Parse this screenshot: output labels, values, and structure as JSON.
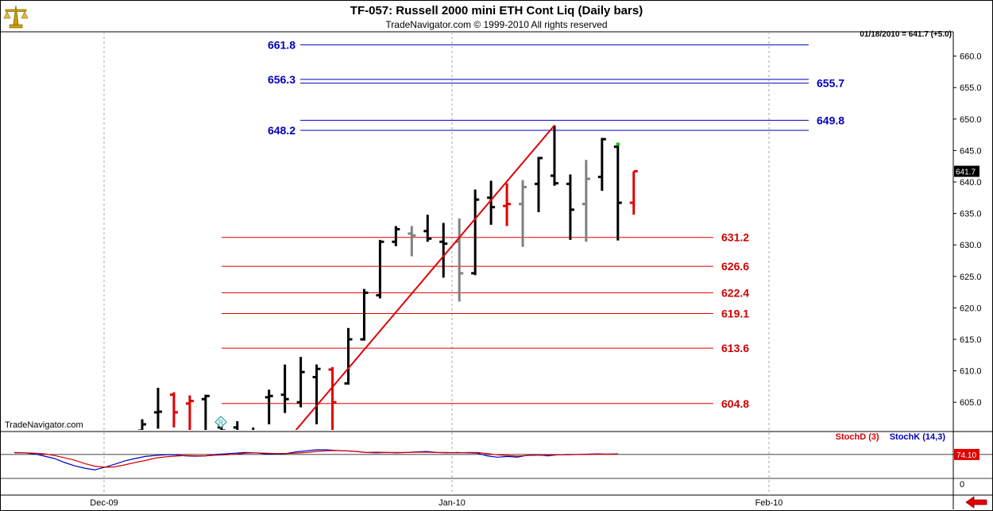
{
  "header": {
    "title": "TF-057:  Russell 2000 mini ETH Cont Liq  (Daily bars)",
    "subtitle": "TradeNavigator.com © 1999-2010 All rights reserved"
  },
  "watermark": "TradeNavigator.com",
  "readout": "01/18/2010 = 641.7 (+5.0)",
  "last_price_tag": "641.7",
  "stoch_value_tag": "74.10",
  "stoch_zero_label": "0",
  "stoch_legend": {
    "d": "StochD (3)",
    "k": "StochK (14,3)"
  },
  "icons": {
    "logo": "scale-logo-icon",
    "nav": "red-left-arrow-icon",
    "marker": "diamond-r-marker-icon"
  },
  "colors": {
    "up_bar": "#000000",
    "down_bar": "#e00000",
    "inside_bar": "#808080",
    "resistance": "#0000c0",
    "support": "#e00000",
    "trendline": "#e00000",
    "stoch_d": "#d40000",
    "stoch_k": "#0000c0"
  },
  "chart_data": {
    "type": "bar",
    "title": "TF-057:  Russell 2000 mini ETH Cont Liq  (Daily bars)",
    "y_range": [
      601,
      663
    ],
    "y_ticks": [
      605.0,
      610.0,
      615.0,
      620.0,
      625.0,
      630.0,
      635.0,
      640.0,
      645.0,
      650.0,
      655.0,
      660.0
    ],
    "x_labels": [
      "Dec-09",
      "Jan-10",
      "Feb-10"
    ],
    "bars": [
      {
        "open": 600.5,
        "high": 602.3,
        "low": 598.0,
        "close": 601.5,
        "color": "up"
      },
      {
        "open": 603.4,
        "high": 607.3,
        "low": 600.8,
        "close": 603.5,
        "color": "up"
      },
      {
        "open": 606.2,
        "high": 606.6,
        "low": 601.0,
        "close": 603.4,
        "color": "down"
      },
      {
        "open": 604.8,
        "high": 606.1,
        "low": 599.5,
        "close": 605.2,
        "color": "down"
      },
      {
        "open": 605.5,
        "high": 606.2,
        "low": 600.0,
        "close": 606.0,
        "color": "up"
      },
      {
        "open": 601.0,
        "high": 602.2,
        "low": 599.0,
        "close": 600.5,
        "color": "up"
      },
      {
        "open": 601.0,
        "high": 602.0,
        "low": 598.0,
        "close": 600.3,
        "color": "up"
      },
      {
        "open": 599.8,
        "high": 601.0,
        "low": 598.0,
        "close": 599.5,
        "color": "up"
      },
      {
        "open": 605.8,
        "high": 607.0,
        "low": 601.5,
        "close": 606.0,
        "color": "up"
      },
      {
        "open": 606.2,
        "high": 611.0,
        "low": 603.3,
        "close": 605.5,
        "color": "up"
      },
      {
        "open": 605.0,
        "high": 612.2,
        "low": 604.2,
        "close": 609.8,
        "color": "up"
      },
      {
        "open": 609.0,
        "high": 611.0,
        "low": 601.5,
        "close": 610.3,
        "color": "up"
      },
      {
        "open": 610.2,
        "high": 610.6,
        "low": 600.0,
        "close": 605.0,
        "color": "down"
      },
      {
        "open": 608.0,
        "high": 616.8,
        "low": 607.8,
        "close": 615.0,
        "color": "up"
      },
      {
        "open": 615.0,
        "high": 623.0,
        "low": 614.8,
        "close": 622.4,
        "color": "up"
      },
      {
        "open": 622.0,
        "high": 630.8,
        "low": 621.5,
        "close": 630.5,
        "color": "up"
      },
      {
        "open": 630.5,
        "high": 633.0,
        "low": 629.8,
        "close": 632.5,
        "color": "up"
      },
      {
        "open": 631.8,
        "high": 633.0,
        "low": 628.2,
        "close": 631.5,
        "color": "inside"
      },
      {
        "open": 632.2,
        "high": 634.8,
        "low": 630.5,
        "close": 631.0,
        "color": "up"
      },
      {
        "open": 630.5,
        "high": 633.5,
        "low": 624.8,
        "close": 630.2,
        "color": "up"
      },
      {
        "open": 630.5,
        "high": 634.2,
        "low": 621.0,
        "close": 625.5,
        "color": "inside"
      },
      {
        "open": 625.5,
        "high": 638.8,
        "low": 625.2,
        "close": 637.2,
        "color": "up"
      },
      {
        "open": 637.5,
        "high": 640.2,
        "low": 633.2,
        "close": 636.0,
        "color": "up"
      },
      {
        "open": 636.2,
        "high": 639.8,
        "low": 633.0,
        "close": 636.5,
        "color": "down"
      },
      {
        "open": 636.5,
        "high": 640.3,
        "low": 629.7,
        "close": 639.2,
        "color": "inside"
      },
      {
        "open": 639.7,
        "high": 644.0,
        "low": 635.2,
        "close": 643.8,
        "color": "up"
      },
      {
        "open": 641.0,
        "high": 649.0,
        "low": 639.4,
        "close": 639.8,
        "color": "up"
      },
      {
        "open": 639.7,
        "high": 641.2,
        "low": 630.8,
        "close": 635.6,
        "color": "up"
      },
      {
        "open": 636.5,
        "high": 643.5,
        "low": 630.5,
        "close": 640.5,
        "color": "inside"
      },
      {
        "open": 640.8,
        "high": 647.0,
        "low": 638.6,
        "close": 646.8,
        "color": "up"
      },
      {
        "open": 645.6,
        "high": 646.0,
        "low": 630.7,
        "close": 636.7,
        "color": "up"
      },
      {
        "open": 636.7,
        "high": 641.7,
        "low": 634.8,
        "close": 641.7,
        "color": "down"
      }
    ],
    "resistance_levels": [
      {
        "left_label": "661.8",
        "value": 661.8
      },
      {
        "left_label": "656.3",
        "value": 656.3
      },
      {
        "right_label": "655.7",
        "value": 655.7
      },
      {
        "right_label": "649.8",
        "value": 649.8
      },
      {
        "left_label": "648.2",
        "value": 648.2
      }
    ],
    "support_levels": [
      {
        "label": "631.2",
        "value": 631.2
      },
      {
        "label": "626.6",
        "value": 626.6
      },
      {
        "label": "622.4",
        "value": 622.4
      },
      {
        "label": "619.1",
        "value": 619.1
      },
      {
        "label": "613.6",
        "value": 613.6
      },
      {
        "label": "604.8",
        "value": 604.8
      }
    ],
    "trendline": {
      "from": {
        "bar": 9.5,
        "price": 600
      },
      "to": {
        "bar": 26.0,
        "price": 649.0
      }
    },
    "stochastic": {
      "range": [
        0,
        100
      ],
      "value_tag": 74.1,
      "k_values": [
        80,
        79,
        76,
        69,
        62,
        50,
        40,
        33,
        28,
        36,
        45,
        55,
        62,
        68,
        71,
        73,
        73,
        70,
        69,
        70,
        74,
        76,
        78,
        80,
        79,
        76,
        76,
        77,
        82,
        85,
        88,
        88,
        86,
        85,
        83,
        80,
        79,
        80,
        79,
        80,
        82,
        83,
        80,
        79,
        80,
        79,
        78,
        70,
        66,
        68,
        66,
        72,
        73,
        70,
        73,
        74,
        74,
        75,
        76,
        75,
        76
      ],
      "d_values": [
        79,
        79,
        78,
        76,
        71,
        64,
        57,
        47,
        39,
        36,
        37,
        43,
        50,
        56,
        63,
        67,
        69,
        71,
        70,
        70,
        72,
        73,
        75,
        78,
        79,
        78,
        77,
        77,
        78,
        80,
        83,
        85,
        86,
        85,
        83,
        80,
        81,
        80,
        80,
        80,
        81,
        81,
        80,
        80,
        79,
        80,
        80,
        77,
        73,
        71,
        69,
        71,
        72,
        72,
        73,
        73,
        74,
        74,
        75,
        75,
        75
      ]
    }
  }
}
